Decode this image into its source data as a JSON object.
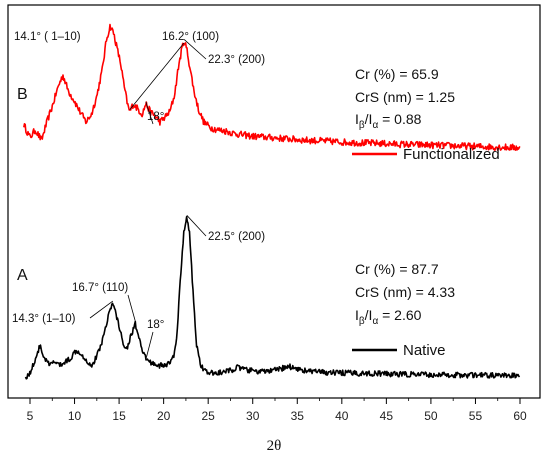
{
  "chart_data": {
    "type": "line",
    "xlabel": "2θ",
    "ylabel": "",
    "xlim": [
      4,
      61
    ],
    "xticks": [
      5,
      10,
      15,
      20,
      25,
      30,
      35,
      40,
      45,
      50,
      55,
      60
    ],
    "ylim": [
      0,
      100
    ],
    "grid": false,
    "series": [
      {
        "name": "Functionalized",
        "panel": "B",
        "color": "#ff0000",
        "points": [
          [
            4.3,
            29
          ],
          [
            5,
            24
          ],
          [
            5.6,
            27
          ],
          [
            6.3,
            23
          ],
          [
            6.9,
            30
          ],
          [
            7.5,
            36
          ],
          [
            8.2,
            44
          ],
          [
            8.7,
            48
          ],
          [
            9.3,
            42
          ],
          [
            10,
            38
          ],
          [
            10.6,
            34
          ],
          [
            11.3,
            30
          ],
          [
            11.9,
            33
          ],
          [
            12.5,
            40
          ],
          [
            13.1,
            50
          ],
          [
            13.6,
            62
          ],
          [
            14.0,
            67
          ],
          [
            14.4,
            64
          ],
          [
            14.8,
            58
          ],
          [
            15.2,
            52
          ],
          [
            15.6,
            43
          ],
          [
            16.0,
            36
          ],
          [
            16.2,
            34
          ],
          [
            16.6,
            37
          ],
          [
            17.1,
            35
          ],
          [
            17.6,
            33
          ],
          [
            18.0,
            37
          ],
          [
            18.5,
            34
          ],
          [
            19.1,
            32
          ],
          [
            19.6,
            30
          ],
          [
            20.2,
            32
          ],
          [
            20.7,
            34
          ],
          [
            21.2,
            40
          ],
          [
            21.7,
            52
          ],
          [
            22.1,
            59
          ],
          [
            22.3,
            61
          ],
          [
            22.6,
            58
          ],
          [
            23.0,
            50
          ],
          [
            23.4,
            42
          ],
          [
            23.9,
            35
          ],
          [
            24.5,
            30
          ],
          [
            25.2,
            28
          ],
          [
            26,
            27
          ],
          [
            27,
            26.5
          ],
          [
            28,
            25.5
          ],
          [
            29,
            25
          ],
          [
            30,
            24.5
          ],
          [
            32,
            24
          ],
          [
            34,
            23.5
          ],
          [
            36,
            23
          ],
          [
            38,
            22.7
          ],
          [
            40,
            22.3
          ],
          [
            42,
            22
          ],
          [
            44,
            21.8
          ],
          [
            46,
            21.5
          ],
          [
            48,
            21.3
          ],
          [
            50,
            21.1
          ],
          [
            52,
            20.9
          ],
          [
            54,
            20.7
          ],
          [
            56,
            20.5
          ],
          [
            58,
            20.3
          ],
          [
            60,
            20.1
          ]
        ]
      },
      {
        "name": "Native",
        "panel": "A",
        "color": "#000000",
        "points": [
          [
            4.5,
            2
          ],
          [
            5,
            3
          ],
          [
            5.5,
            6
          ],
          [
            6.1,
            10
          ],
          [
            6.6,
            7
          ],
          [
            7.2,
            5
          ],
          [
            7.8,
            6
          ],
          [
            8.4,
            5
          ],
          [
            9,
            6
          ],
          [
            9.6,
            7
          ],
          [
            10.2,
            9
          ],
          [
            10.8,
            8
          ],
          [
            11.4,
            6
          ],
          [
            12,
            5
          ],
          [
            12.6,
            8
          ],
          [
            13.2,
            12
          ],
          [
            13.8,
            18
          ],
          [
            14.3,
            21
          ],
          [
            14.8,
            17
          ],
          [
            15.3,
            12
          ],
          [
            15.8,
            9
          ],
          [
            16.4,
            13
          ],
          [
            16.8,
            16
          ],
          [
            17.2,
            12
          ],
          [
            17.7,
            8
          ],
          [
            18.3,
            6
          ],
          [
            18.9,
            5.5
          ],
          [
            19.5,
            5
          ],
          [
            20.1,
            5
          ],
          [
            20.6,
            5.5
          ],
          [
            21.1,
            7
          ],
          [
            21.5,
            13
          ],
          [
            21.9,
            28
          ],
          [
            22.3,
            40
          ],
          [
            22.6,
            43
          ],
          [
            22.9,
            39
          ],
          [
            23.3,
            24
          ],
          [
            23.7,
            10
          ],
          [
            24.2,
            5
          ],
          [
            24.8,
            3.2
          ],
          [
            25.5,
            3
          ],
          [
            26.5,
            3.2
          ],
          [
            27.5,
            3.7
          ],
          [
            28.2,
            4.5
          ],
          [
            29,
            4
          ],
          [
            30,
            3.6
          ],
          [
            31,
            3.4
          ],
          [
            32,
            3.6
          ],
          [
            33,
            4
          ],
          [
            34,
            4.8
          ],
          [
            35,
            4.2
          ],
          [
            36,
            3.6
          ],
          [
            38,
            3.2
          ],
          [
            40,
            3.1
          ],
          [
            42,
            3
          ],
          [
            44,
            2.9
          ],
          [
            46,
            2.8
          ],
          [
            48,
            2.7
          ],
          [
            50,
            2.6
          ],
          [
            52,
            2.6
          ],
          [
            54,
            2.5
          ],
          [
            56,
            2.5
          ],
          [
            58,
            2.4
          ],
          [
            60,
            2.3
          ]
        ]
      }
    ],
    "annotations": [
      {
        "id": "b-141",
        "text": "14.1°  ( 1–10)",
        "x": 14.0,
        "y": 67,
        "curve": "B"
      },
      {
        "id": "b-162",
        "text": "16.2° (100)",
        "x": 16.2,
        "y": 34,
        "curve": "B"
      },
      {
        "id": "b-223",
        "text": "22.3° (200)",
        "x": 22.3,
        "y": 61,
        "curve": "B"
      },
      {
        "id": "b-18",
        "text": "18°",
        "x": 18.0,
        "y": 37,
        "curve": "B"
      },
      {
        "id": "a-225",
        "text": "22.5° (200)",
        "x": 22.6,
        "y": 43,
        "curve": "A"
      },
      {
        "id": "a-167",
        "text": "16.7° (110)",
        "x": 16.8,
        "y": 16,
        "curve": "A"
      },
      {
        "id": "a-143",
        "text": "14.3° (1–10)",
        "x": 14.3,
        "y": 21,
        "curve": "A"
      },
      {
        "id": "a-18",
        "text": "18°",
        "x": 18.0,
        "y": 6,
        "curve": "A"
      }
    ]
  },
  "panels": {
    "B": {
      "label": "B",
      "cr": "Cr (%) = 65.9",
      "crs": "CrS (nm) = 1.25",
      "ratio_prefix": "I",
      "ratio_sub1": "β",
      "ratio_mid": "/I",
      "ratio_sub2": "α",
      "ratio_value": " =  0.88",
      "legend": "Functionalized"
    },
    "A": {
      "label": "A",
      "cr": "Cr (%) = 87.7",
      "crs": "CrS (nm) = 4.33",
      "ratio_prefix": "I",
      "ratio_sub1": "β",
      "ratio_mid": "/I",
      "ratio_sub2": "α",
      "ratio_value": " =  2.60",
      "legend": "Native"
    }
  },
  "colors": {
    "functionalized": "#ff0000",
    "native": "#000000"
  }
}
